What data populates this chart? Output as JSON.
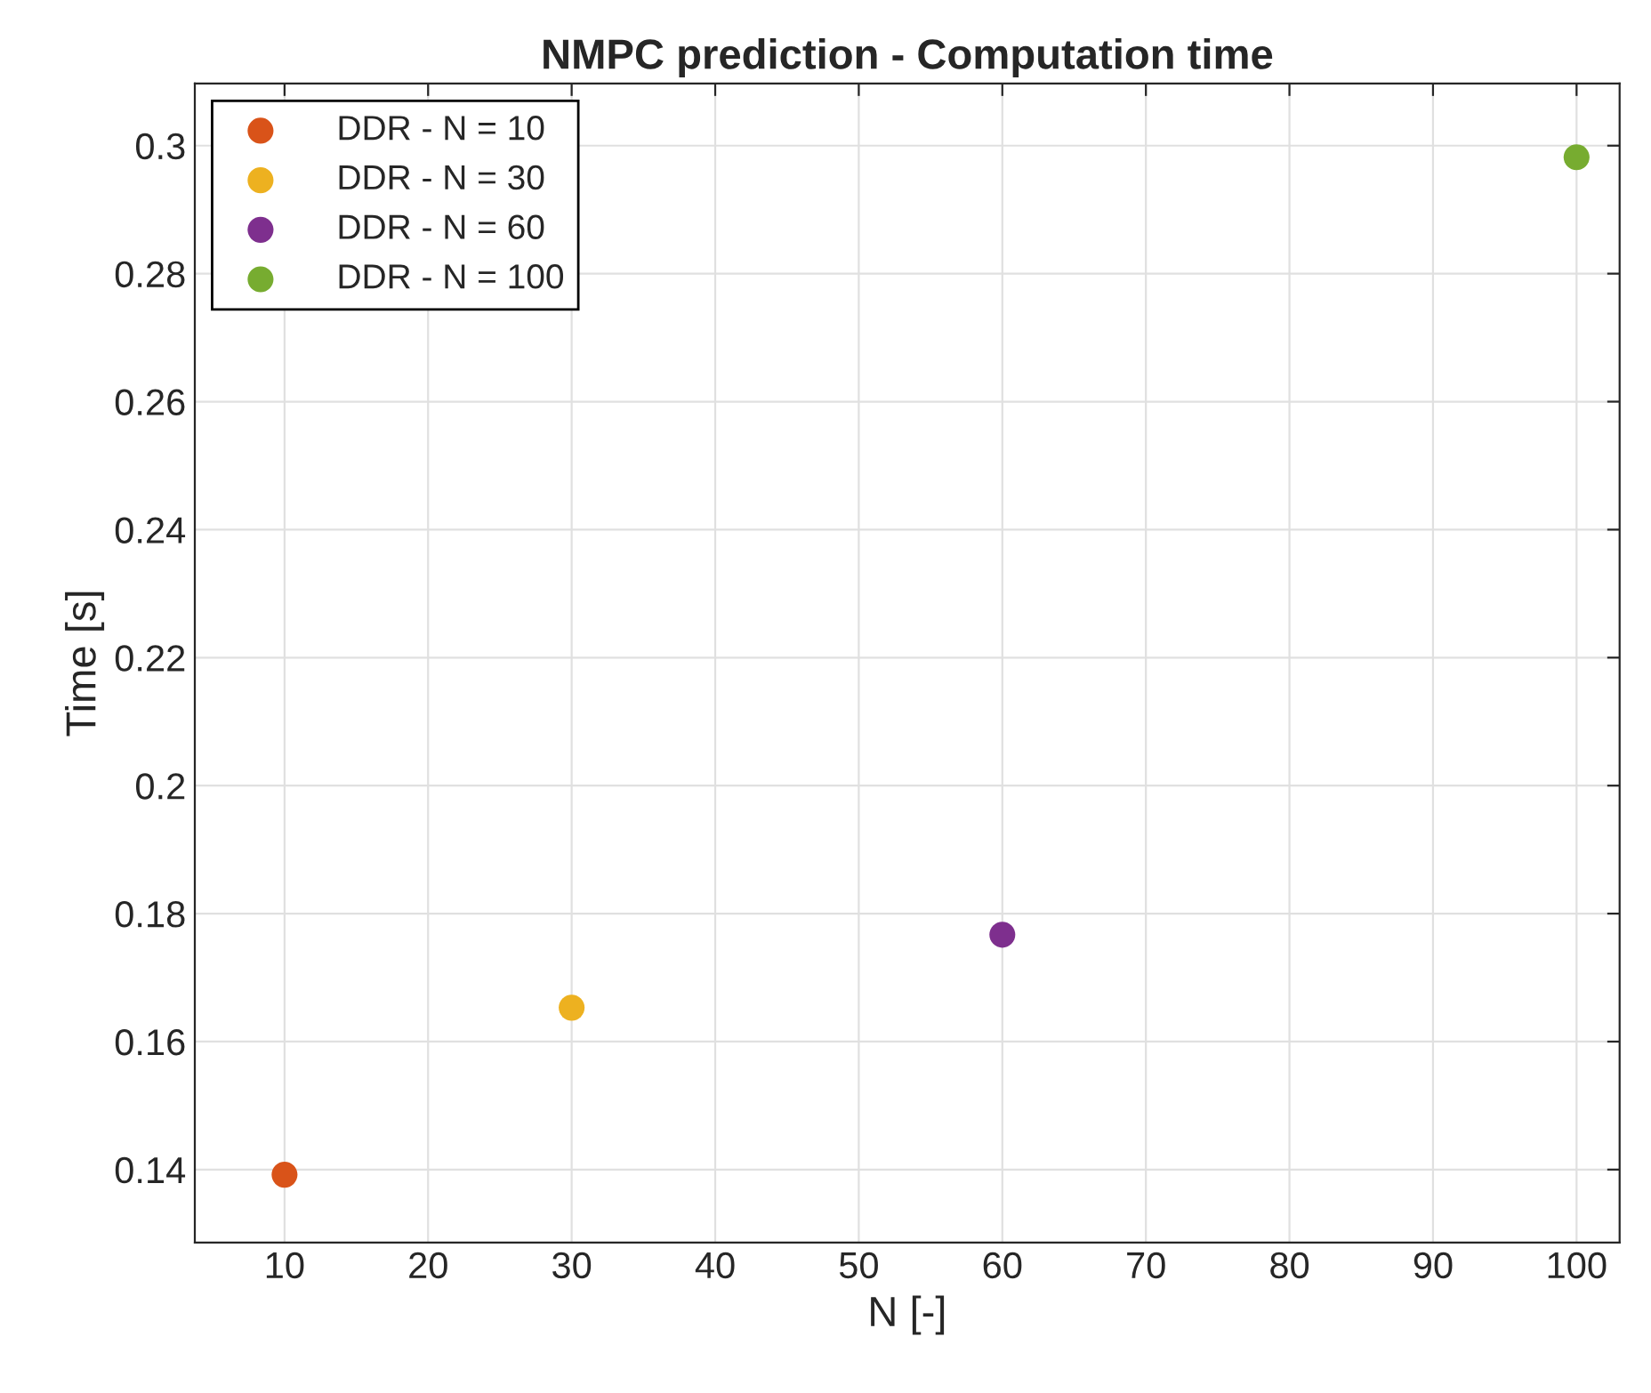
{
  "chart_data": {
    "type": "scatter",
    "title": "NMPC prediction - Computation time",
    "xlabel": "N [-]",
    "ylabel": "Time [s]",
    "series": [
      {
        "name": "DDR - N = 10",
        "color": "#d95319",
        "x": [
          10
        ],
        "values": [
          0.1392
        ]
      },
      {
        "name": "DDR - N = 30",
        "color": "#edb120",
        "x": [
          30
        ],
        "values": [
          0.1653
        ]
      },
      {
        "name": "DDR - N = 60",
        "color": "#7e2f8e",
        "x": [
          60
        ],
        "values": [
          0.1767
        ]
      },
      {
        "name": "DDR - N = 100",
        "color": "#77ac30",
        "x": [
          100
        ],
        "values": [
          0.2982
        ]
      }
    ],
    "xlim": [
      3.75,
      103
    ],
    "ylim": [
      0.1286,
      0.3097
    ],
    "xticks": [
      10,
      20,
      30,
      40,
      50,
      60,
      70,
      80,
      90,
      100
    ],
    "yticks": [
      0.14,
      0.16,
      0.18,
      0.2,
      0.22,
      0.24,
      0.26,
      0.28,
      0.3
    ],
    "grid": true,
    "legend": "top left",
    "marker": "circle"
  }
}
